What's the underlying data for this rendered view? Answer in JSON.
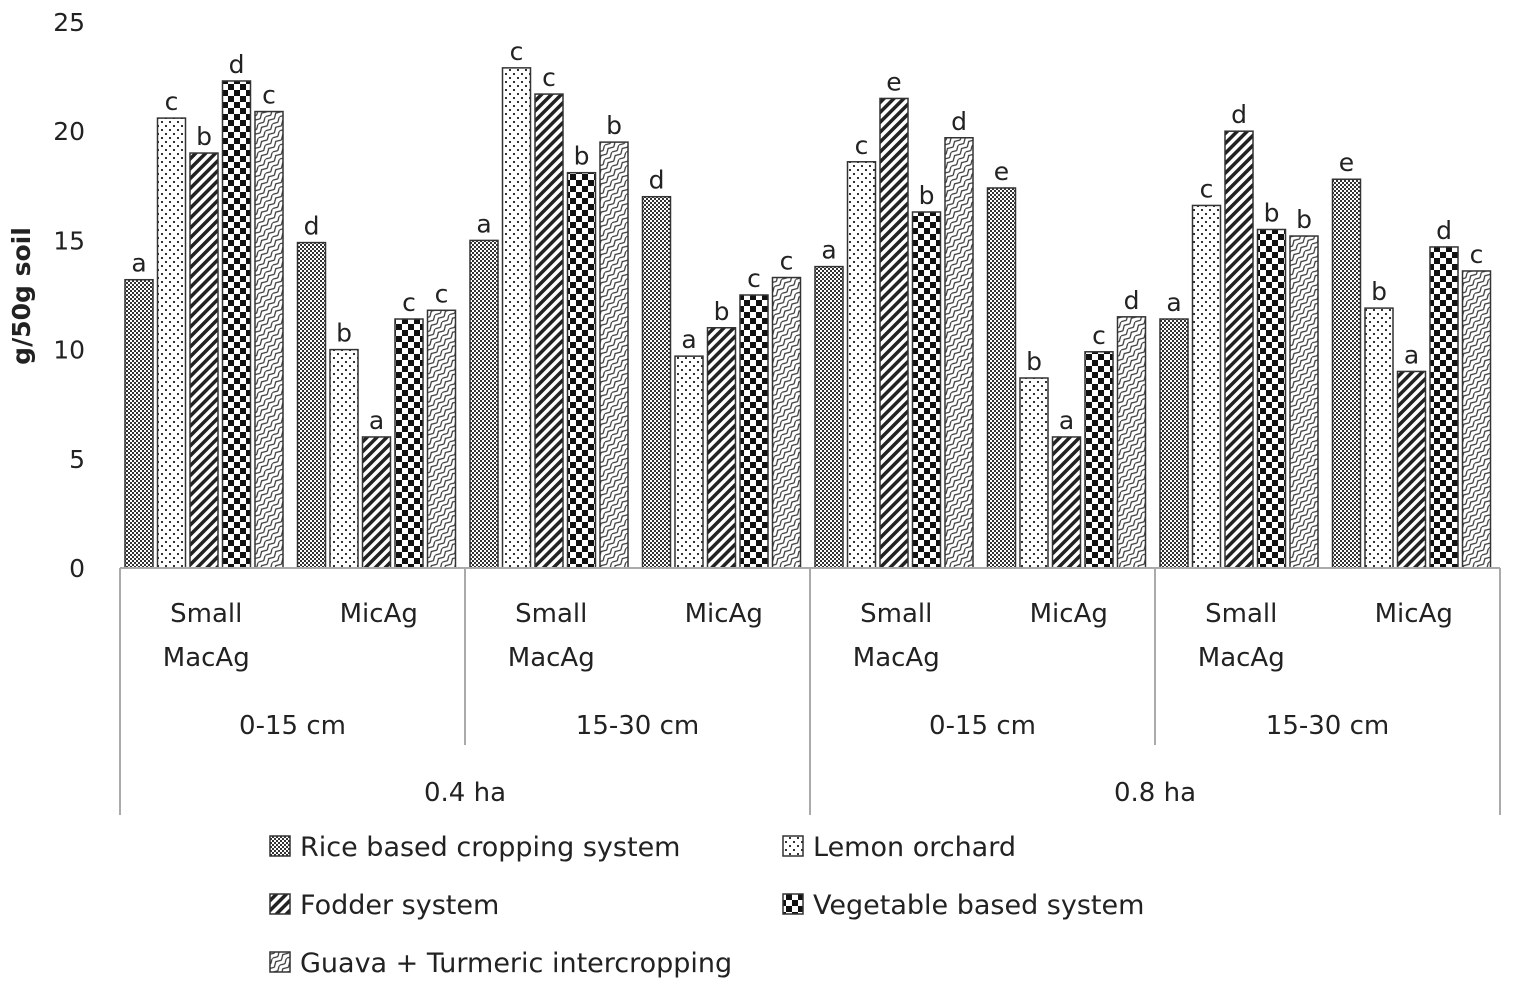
{
  "chart_data": {
    "type": "bar",
    "title": "",
    "ylabel": "g/50g soil",
    "xlabel": "",
    "ylim": [
      0,
      25
    ],
    "yticks": [
      0,
      5,
      10,
      15,
      20,
      25
    ],
    "grid": false,
    "legend_position": "bottom",
    "categories": [
      {
        "group": "Small MacAg",
        "depth": "0-15 cm",
        "area": "0.4 ha"
      },
      {
        "group": "MicAg",
        "depth": "0-15 cm",
        "area": "0.4 ha"
      },
      {
        "group": "Small MacAg",
        "depth": "15-30 cm",
        "area": "0.4 ha"
      },
      {
        "group": "MicAg",
        "depth": "15-30 cm",
        "area": "0.4 ha"
      },
      {
        "group": "Small MacAg",
        "depth": "0-15 cm",
        "area": "0.8 ha"
      },
      {
        "group": "MicAg",
        "depth": "0-15 cm",
        "area": "0.8 ha"
      },
      {
        "group": "Small MacAg",
        "depth": "15-30 cm",
        "area": "0.8 ha"
      },
      {
        "group": "MicAg",
        "depth": "15-30 cm",
        "area": "0.8 ha"
      }
    ],
    "depth_labels": [
      "0-15 cm",
      "15-30 cm",
      "0-15 cm",
      "15-30 cm"
    ],
    "area_labels": [
      "0.4 ha",
      "0.8 ha"
    ],
    "group_labels": {
      "small_line1": "Small",
      "small_line2": "MacAg",
      "micag": "MicAg"
    },
    "series": [
      {
        "name": "Rice based cropping system",
        "pattern": "dots-dense",
        "values": [
          13.2,
          14.9,
          15.0,
          17.0,
          13.8,
          17.4,
          11.4,
          17.8
        ],
        "letters": [
          "a",
          "d",
          "a",
          "d",
          "a",
          "e",
          "a",
          "e"
        ]
      },
      {
        "name": "Lemon orchard",
        "pattern": "dots-sparse",
        "values": [
          20.6,
          10.0,
          22.9,
          9.7,
          18.6,
          8.7,
          16.6,
          11.9
        ],
        "letters": [
          "c",
          "b",
          "c",
          "a",
          "c",
          "b",
          "c",
          "b"
        ]
      },
      {
        "name": "Fodder system",
        "pattern": "diagonal",
        "values": [
          19.0,
          6.0,
          21.7,
          11.0,
          21.5,
          6.0,
          20.0,
          9.0
        ],
        "letters": [
          "b",
          "a",
          "c",
          "b",
          "e",
          "a",
          "d",
          "a"
        ]
      },
      {
        "name": "Vegetable based system",
        "pattern": "checker",
        "values": [
          22.3,
          11.4,
          18.1,
          12.5,
          16.3,
          9.9,
          15.5,
          14.7
        ],
        "letters": [
          "d",
          "c",
          "b",
          "c",
          "b",
          "c",
          "b",
          "d"
        ]
      },
      {
        "name": "Guava + Turmeric intercropping",
        "pattern": "zigzag",
        "values": [
          20.9,
          11.8,
          19.5,
          13.3,
          19.7,
          11.5,
          15.2,
          13.6
        ],
        "letters": [
          "c",
          "c",
          "b",
          "c",
          "d",
          "d",
          "b",
          "c"
        ]
      }
    ]
  }
}
